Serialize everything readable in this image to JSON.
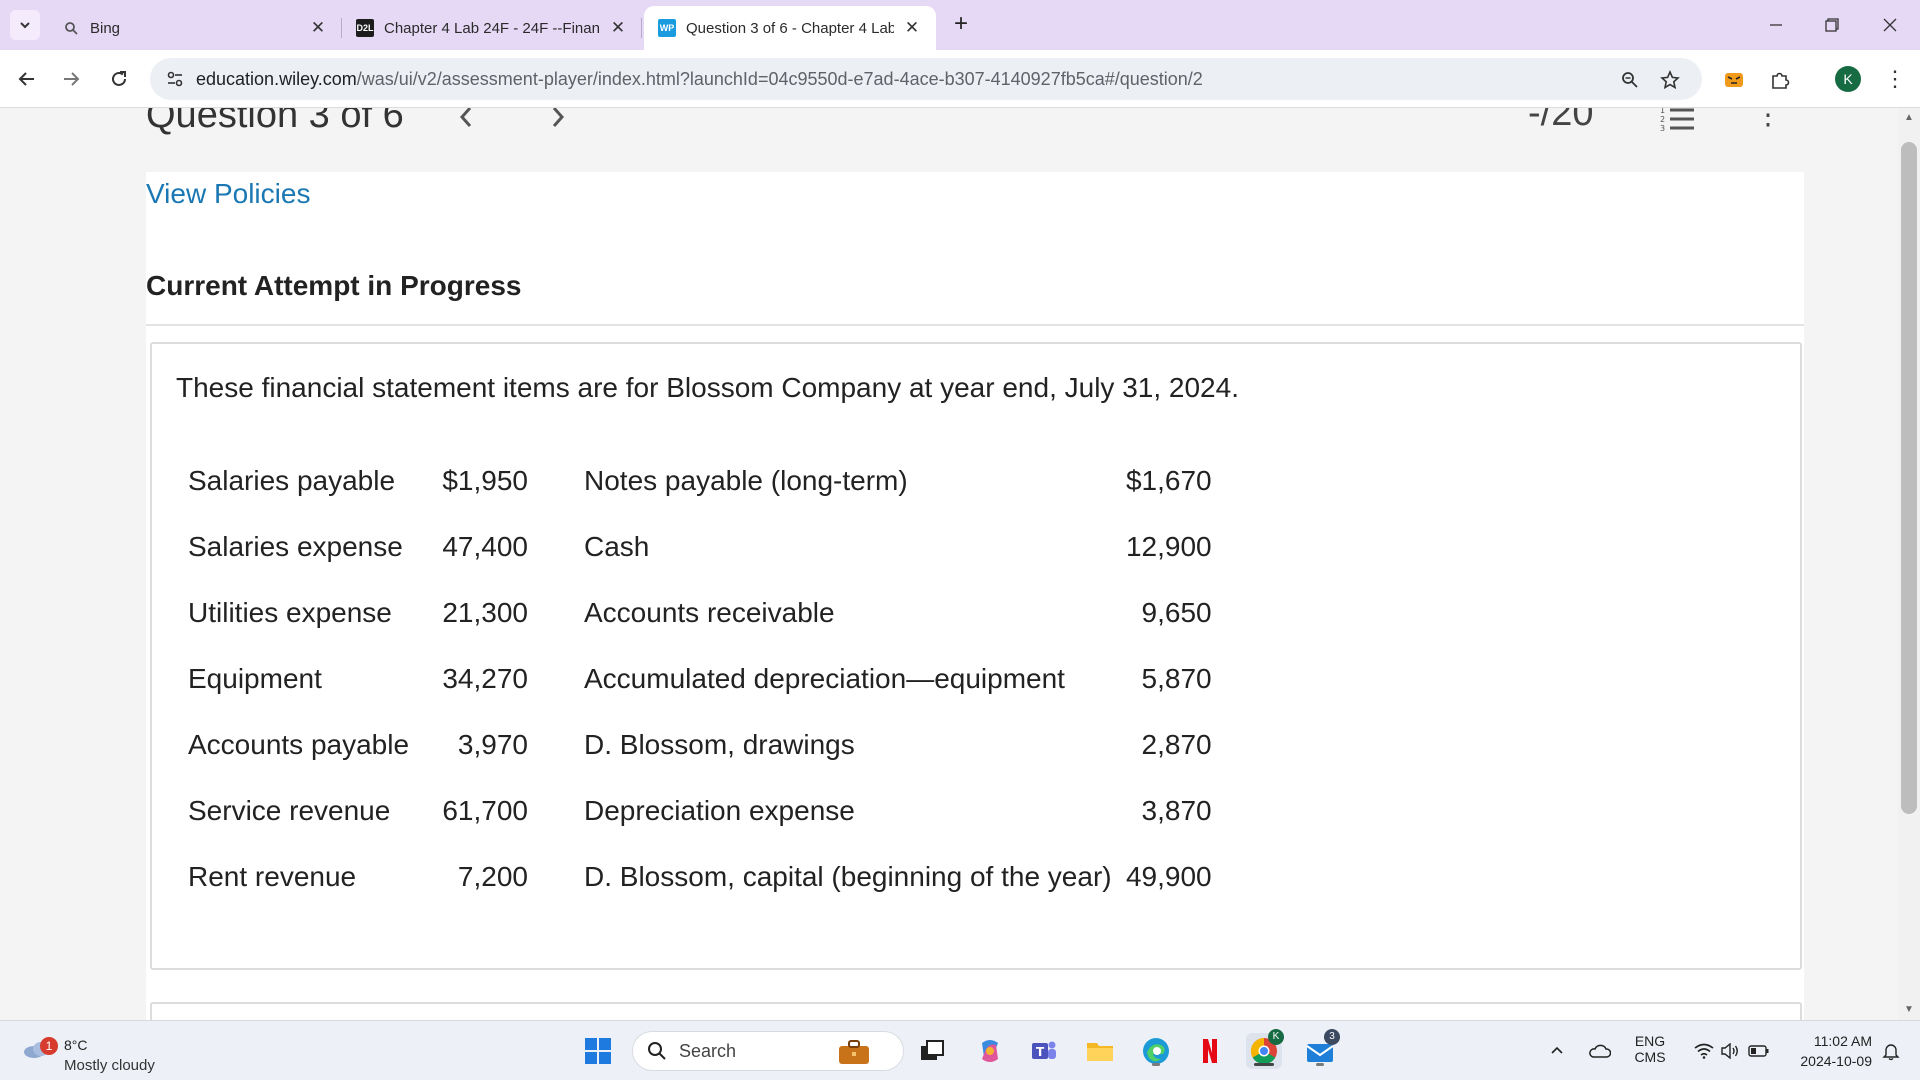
{
  "browser": {
    "tabs": [
      {
        "title": "Bing",
        "favicon": "search-icon"
      },
      {
        "title": "Chapter 4 Lab 24F - 24F --Finan",
        "favicon": "d2l-logo",
        "favicon_text": "D2L"
      },
      {
        "title": "Question 3 of 6 - Chapter 4 Lab",
        "favicon": "wileyplus-logo",
        "favicon_text": "WP"
      }
    ],
    "address": {
      "host": "education.wiley.com",
      "path": "/was/ui/v2/assessment-player/index.html?launchId=04c9550d-e7ad-4ace-b307-4140927fb5ca#/question/2"
    },
    "profile_initial": "K"
  },
  "page": {
    "question_title": "Question 3 of 6",
    "score": "-/20",
    "view_policies": "View Policies",
    "attempt_heading": "Current Attempt in Progress",
    "intro": "These financial statement items are for Blossom Company at year end, July 31, 2024.",
    "items": [
      {
        "left_label": "Salaries payable",
        "left_amount": "$1,950",
        "right_label": "Notes payable (long-term)",
        "right_amount": "$1,670"
      },
      {
        "left_label": "Salaries expense",
        "left_amount": "47,400",
        "right_label": "Cash",
        "right_amount": "12,900"
      },
      {
        "left_label": "Utilities expense",
        "left_amount": "21,300",
        "right_label": "Accounts receivable",
        "right_amount": "9,650"
      },
      {
        "left_label": "Equipment",
        "left_amount": "34,270",
        "right_label": "Accumulated depreciation—equipment",
        "right_amount": "5,870"
      },
      {
        "left_label": "Accounts payable",
        "left_amount": "3,970",
        "right_label": "D. Blossom, drawings",
        "right_amount": "2,870"
      },
      {
        "left_label": "Service revenue",
        "left_amount": "61,700",
        "right_label": "Depreciation expense",
        "right_amount": "3,870"
      },
      {
        "left_label": "Rent revenue",
        "left_amount": "7,200",
        "right_label": "D. Blossom, capital (beginning of the year)",
        "right_amount": "49,900"
      }
    ]
  },
  "taskbar": {
    "weather": {
      "temp": "8°C",
      "desc": "Mostly cloudy",
      "badge": "1"
    },
    "search_label": "Search",
    "mail_badge": "3",
    "chrome_badge": "K",
    "tray": {
      "lang_top": "ENG",
      "lang_bottom": "CMS"
    },
    "clock": {
      "time": "11:02 AM",
      "date": "2024-10-09"
    }
  },
  "colors": {
    "tabstrip": "#e6d9f6",
    "link": "#1b78b3",
    "page_bg": "#f4f4f4"
  }
}
